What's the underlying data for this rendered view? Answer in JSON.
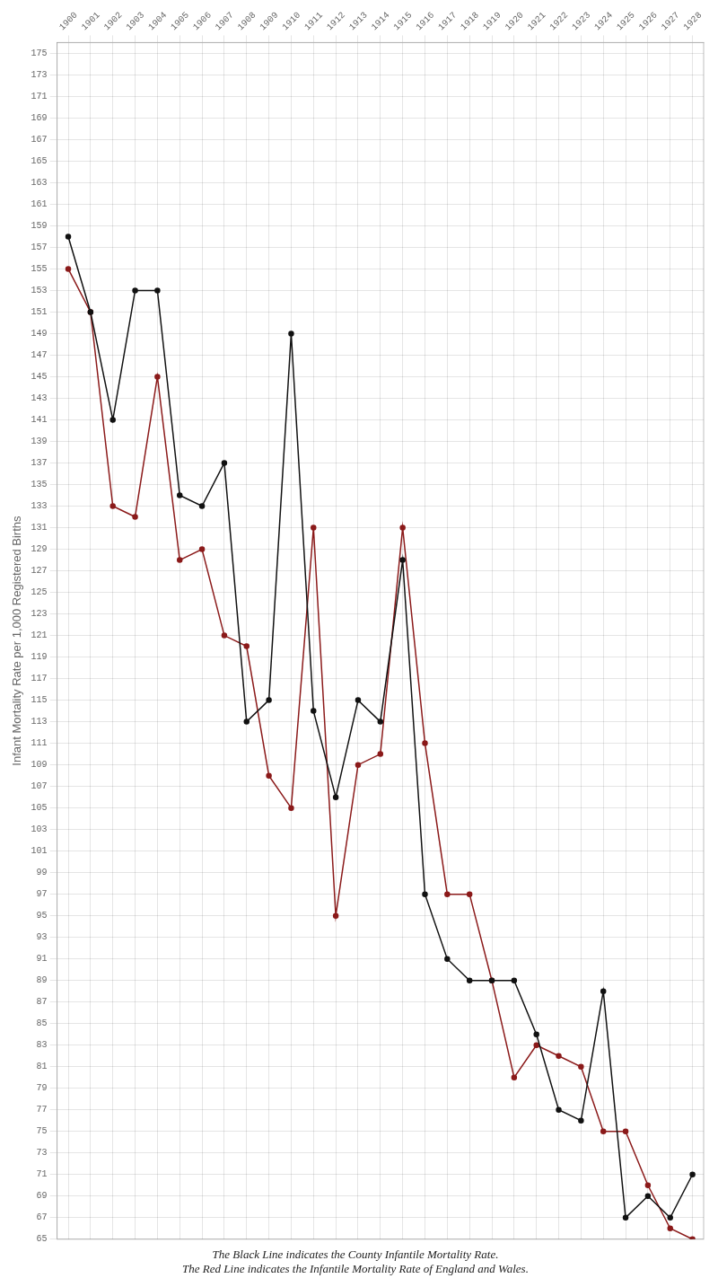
{
  "chart_data": {
    "type": "line",
    "ylabel": "Infant Mortality Rate per 1,000 Registered Births",
    "annotations": [
      "The Black Line indicates the County Infantile Mortality Rate.",
      "The Red Line indicates the Infantile Mortality Rate of England and Wales."
    ],
    "x": [
      1900,
      1901,
      1902,
      1903,
      1904,
      1905,
      1906,
      1907,
      1908,
      1909,
      1910,
      1911,
      1912,
      1913,
      1914,
      1915,
      1916,
      1917,
      1918,
      1919,
      1920,
      1921,
      1922,
      1923,
      1924,
      1925,
      1926,
      1927,
      1928
    ],
    "series": [
      {
        "color": "#111111",
        "marker": "circle",
        "line_style": "solid",
        "values": [
          158,
          151,
          141,
          153,
          153,
          134,
          133,
          137,
          113,
          115,
          149,
          114,
          106,
          115,
          113,
          128,
          97,
          91,
          89,
          89,
          89,
          84,
          77,
          76,
          88,
          67,
          69,
          67,
          71
        ]
      },
      {
        "color": "#8B1A1A",
        "marker": "circle",
        "line_style": "solid",
        "values": [
          155,
          151,
          133,
          132,
          145,
          128,
          129,
          121,
          120,
          108,
          105,
          131,
          95,
          109,
          110,
          131,
          111,
          97,
          97,
          89,
          80,
          83,
          82,
          81,
          75,
          75,
          70,
          66,
          65
        ]
      }
    ],
    "xlim": [
      1899.5,
      1928.5
    ],
    "xticks": [
      1900,
      1901,
      1902,
      1903,
      1904,
      1905,
      1906,
      1907,
      1908,
      1909,
      1910,
      1911,
      1912,
      1913,
      1914,
      1915,
      1916,
      1917,
      1918,
      1919,
      1920,
      1921,
      1922,
      1923,
      1924,
      1925,
      1926,
      1927,
      1928
    ],
    "ylim": [
      65,
      176
    ],
    "yticks": [
      65,
      67,
      69,
      71,
      73,
      75,
      77,
      79,
      81,
      83,
      85,
      87,
      89,
      91,
      93,
      95,
      97,
      99,
      101,
      103,
      105,
      107,
      109,
      111,
      113,
      115,
      117,
      119,
      121,
      123,
      125,
      127,
      129,
      131,
      133,
      135,
      137,
      139,
      141,
      143,
      145,
      147,
      149,
      151,
      153,
      155,
      157,
      159,
      161,
      163,
      165,
      167,
      169,
      171,
      173,
      175
    ],
    "grid": true
  }
}
